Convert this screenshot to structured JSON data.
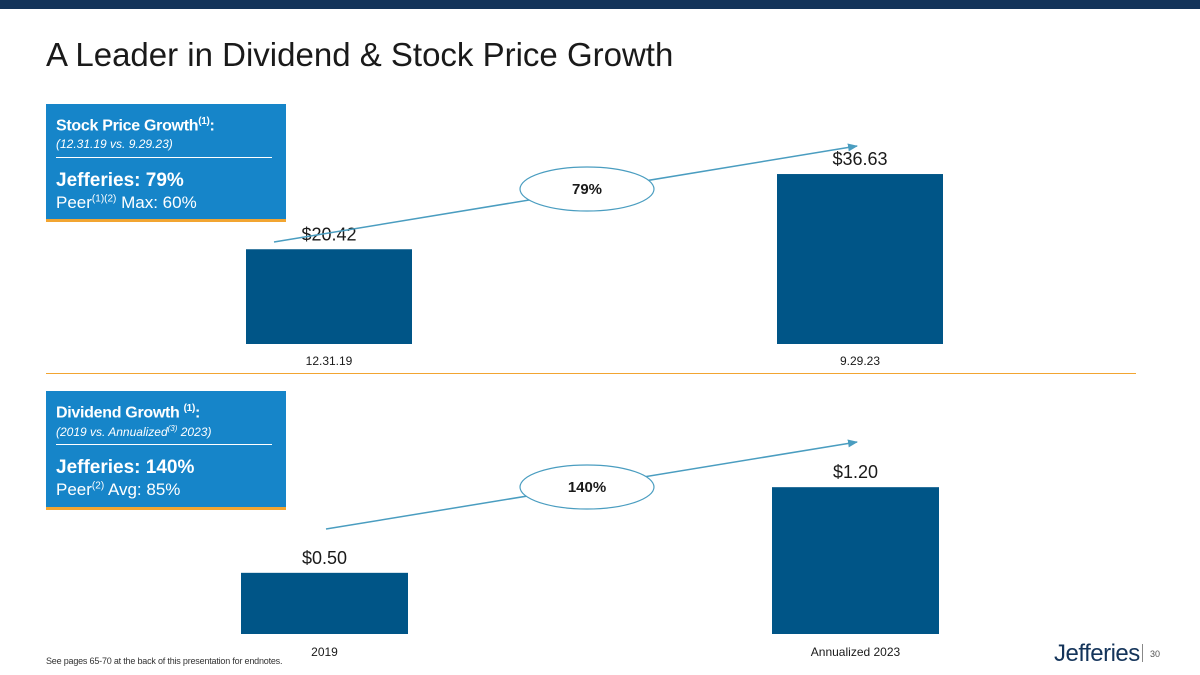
{
  "slide": {
    "title": "A Leader in Dividend & Stock Price Growth",
    "footnote": "See pages 65-70 at the back of this presentation for endnotes.",
    "logo": "Jefferies",
    "page_number": "30"
  },
  "colors": {
    "bar": "#005587",
    "box": "#1685c9",
    "accent": "#f2a531",
    "arrow": "#4a9dc0",
    "topbar": "#14345a"
  },
  "stock_box": {
    "heading": "Stock Price Growth",
    "heading_sup": "(1)",
    "heading_suffix": ":",
    "subtitle": "(12.31.19  vs.  9.29.23)",
    "main": "Jefferies:  79%",
    "peer_label": "Peer",
    "peer_sup": "(1)(2)",
    "peer_value": " Max: 60%"
  },
  "dividend_box": {
    "heading": "Dividend Growth ",
    "heading_sup": "(1)",
    "heading_suffix": ":",
    "subtitle_pre": "(2019 vs. Annualized",
    "subtitle_sup": "(3)",
    "subtitle_post": " 2023)",
    "main": "Jefferies:  140%",
    "peer_label": "Peer",
    "peer_sup": "(2)",
    "peer_value": " Avg: 85%"
  },
  "chart_data": [
    {
      "type": "bar",
      "title": "Stock Price Growth",
      "categories": [
        "12.31.19",
        "9.29.23"
      ],
      "values": [
        20.42,
        36.63
      ],
      "labels": [
        "$20.42",
        "$36.63"
      ],
      "growth_label": "79%",
      "ylim": [
        0,
        50
      ],
      "grid": false
    },
    {
      "type": "bar",
      "title": "Dividend Growth",
      "categories": [
        "2019",
        "Annualized 2023"
      ],
      "values": [
        0.5,
        1.2
      ],
      "labels": [
        "$0.50",
        "$1.20"
      ],
      "growth_label": "140%",
      "ylim": [
        0,
        1.7
      ],
      "grid": false
    }
  ]
}
